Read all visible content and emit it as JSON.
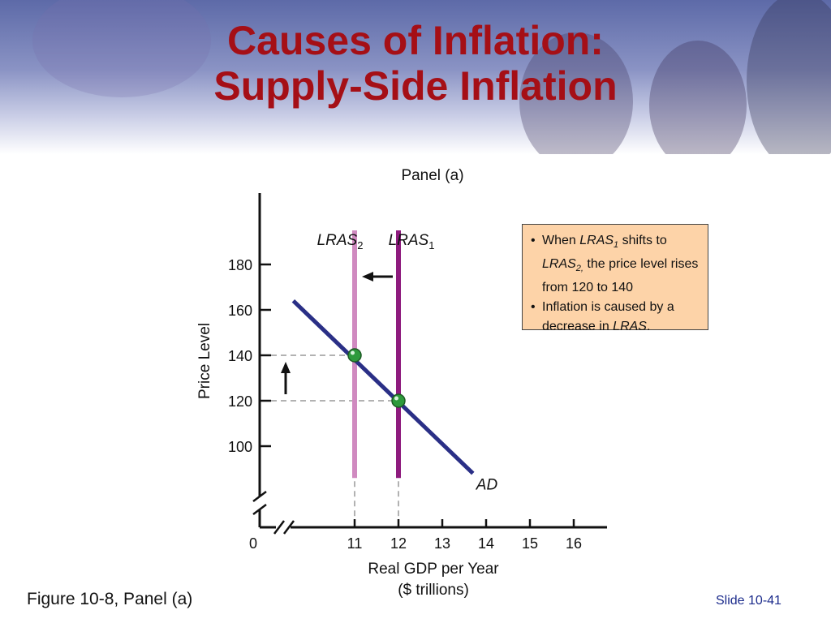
{
  "slide": {
    "title_line1": "Causes of Inflation:",
    "title_line2": "Supply-Side  Inflation",
    "caption": "Figure 10-8, Panel (a)",
    "slide_number": "Slide 10-41"
  },
  "callout": {
    "b1_pre": "When ",
    "b1_var": "LRAS",
    "b1_sub": "1",
    "b1_mid": " shifts to ",
    "b1_var2": "LRAS",
    "b1_sub2": "2,",
    "b1_post": " the price level rises from 120 to 140",
    "b2_pre": "Inflation is caused by a decrease in ",
    "b2_var": "LRAS",
    "b2_post": "."
  },
  "colors": {
    "title": "#a50f16",
    "lras1": "#8e1b7e",
    "lras2": "#d08ac0",
    "ad": "#2a2f86",
    "point": "#2e9a3c",
    "callout_bg": "#fdd3a8"
  },
  "chart_data": {
    "type": "line",
    "title": "Panel (a)",
    "xlabel_line1": "Real GDP per Year",
    "xlabel_line2": "($ trillions)",
    "ylabel": "Price Level",
    "x_origin_label": "0",
    "x_ticks": [
      11,
      12,
      13,
      14,
      15,
      16
    ],
    "y_ticks": [
      100,
      120,
      140,
      160,
      180
    ],
    "series": [
      {
        "name": "LRAS",
        "sub": "1",
        "kind": "vertical",
        "x": 12,
        "y_range": [
          86,
          195
        ]
      },
      {
        "name": "LRAS",
        "sub": "2",
        "kind": "vertical",
        "x": 11,
        "y_range": [
          86,
          195
        ]
      },
      {
        "name": "AD",
        "sub": "",
        "kind": "line",
        "points": [
          [
            9.6,
            164
          ],
          [
            13.7,
            88
          ]
        ]
      }
    ],
    "equilibria": [
      {
        "x": 11,
        "y": 140
      },
      {
        "x": 12,
        "y": 120
      }
    ],
    "arrows": [
      {
        "direction": "left",
        "meaning": "LRAS shifts from 12 to 11"
      },
      {
        "direction": "up",
        "meaning": "price level rises from 120 to 140"
      }
    ]
  }
}
